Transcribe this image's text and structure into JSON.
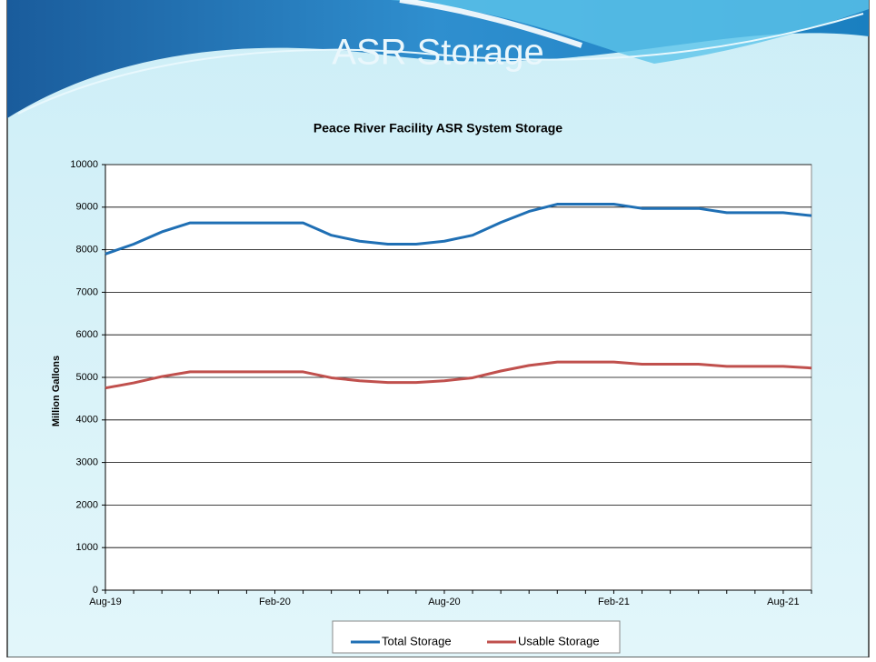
{
  "slide_title": "ASR Storage",
  "chart_data": {
    "type": "line",
    "title": "Peace River Facility ASR System Storage",
    "y_label": "Million Gallons",
    "categories": [
      "Aug-19",
      null,
      null,
      null,
      null,
      null,
      "Feb-20",
      null,
      null,
      null,
      null,
      null,
      "Aug-20",
      null,
      null,
      null,
      null,
      null,
      "Feb-21",
      null,
      null,
      null,
      null,
      null,
      "Aug-21",
      null
    ],
    "series": [
      {
        "name": "Total Storage",
        "color": "#1f6fb4",
        "values": [
          7900,
          8130,
          8420,
          8630,
          8630,
          8630,
          8630,
          8630,
          8340,
          8200,
          8130,
          8130,
          8200,
          8340,
          8640,
          8900,
          9070,
          9070,
          9070,
          8970,
          8970,
          8970,
          8870,
          8870,
          8870,
          8800
        ]
      },
      {
        "name": "Usable Storage",
        "color": "#c0504d",
        "values": [
          4750,
          4870,
          5020,
          5130,
          5130,
          5130,
          5130,
          5130,
          4990,
          4920,
          4880,
          4880,
          4920,
          4990,
          5150,
          5280,
          5360,
          5360,
          5360,
          5310,
          5310,
          5310,
          5260,
          5260,
          5260,
          5220
        ]
      }
    ],
    "ylim": [
      0,
      10000
    ],
    "yticks": [
      0,
      1000,
      2000,
      3000,
      4000,
      5000,
      6000,
      7000,
      8000,
      9000,
      10000
    ],
    "grid": true
  }
}
